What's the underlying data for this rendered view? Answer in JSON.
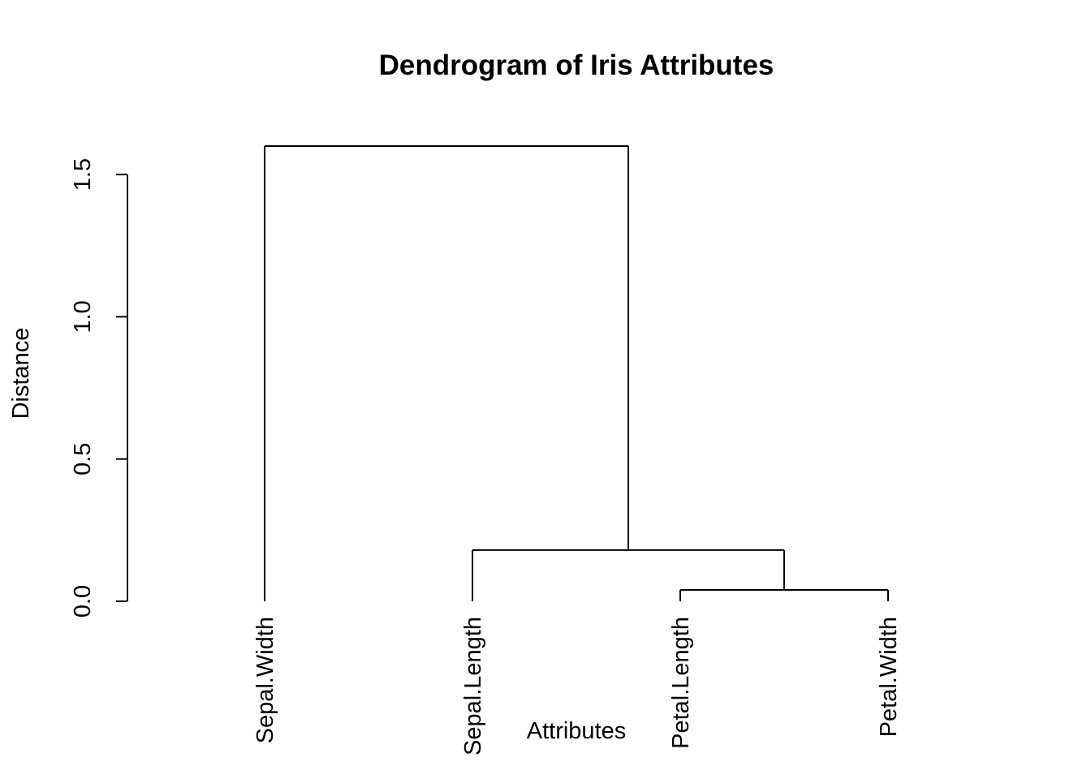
{
  "chart_data": {
    "type": "dendrogram",
    "title": "Dendrogram of Iris Attributes",
    "xlabel": "Attributes",
    "ylabel": "Distance",
    "ylim": [
      0,
      1.6
    ],
    "yticks": [
      0.0,
      0.5,
      1.0,
      1.5
    ],
    "ytick_labels": [
      "0.0",
      "0.5",
      "1.0",
      "1.5"
    ],
    "leaves": [
      "Sepal.Width",
      "Sepal.Length",
      "Petal.Length",
      "Petal.Width"
    ],
    "merges": [
      {
        "left": "Petal.Length",
        "right": "Petal.Width",
        "height": 0.04
      },
      {
        "left": "Sepal.Length",
        "right": "cluster:Petal.Length+Petal.Width",
        "height": 0.18
      },
      {
        "left": "Sepal.Width",
        "right": "cluster:Sepal.Length+Petal.Length+Petal.Width",
        "height": 1.6
      }
    ],
    "grid": false,
    "legend": "none",
    "line_color": "#000000"
  }
}
